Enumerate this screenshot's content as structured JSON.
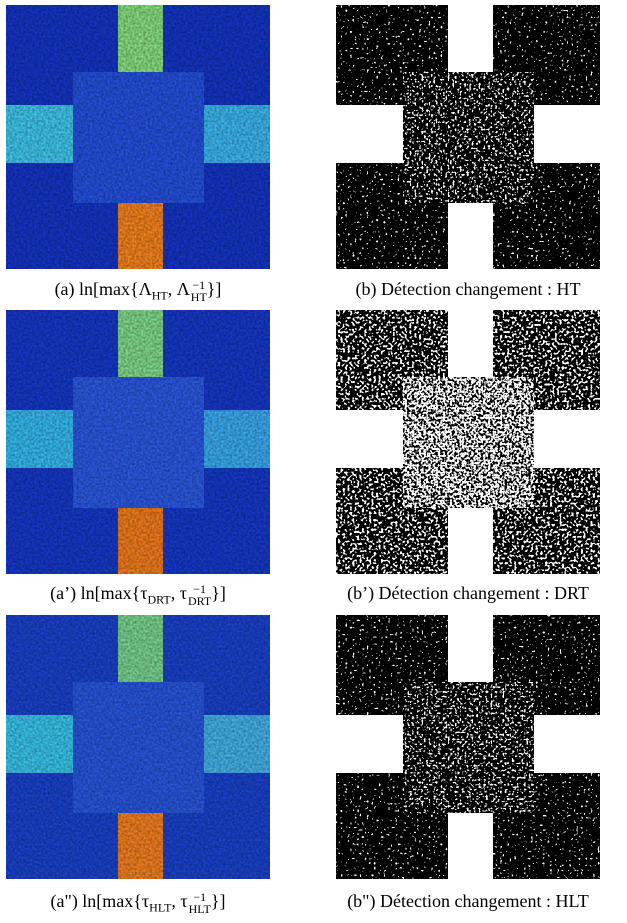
{
  "panels": [
    {
      "caption": [
        {
          "text": "(a) ln[max{Λ"
        },
        {
          "sub": "HT"
        },
        {
          "text": ", Λ"
        },
        {
          "sup": "−1",
          "sub": "HT"
        },
        {
          "text": "}]"
        }
      ]
    },
    {
      "caption": [
        {
          "text": "(b) Détection changement : HT"
        }
      ]
    },
    {
      "caption": [
        {
          "text": "(a’) ln[max{τ"
        },
        {
          "sub": "DRT"
        },
        {
          "text": ", τ"
        },
        {
          "sup": "−1",
          "sub": "DRT"
        },
        {
          "text": "}]"
        }
      ]
    },
    {
      "caption": [
        {
          "text": "(b’) Détection changement : DRT"
        }
      ]
    },
    {
      "caption": [
        {
          "text": "(a\") ln[max{τ"
        },
        {
          "sub": "HLT"
        },
        {
          "text": ", τ"
        },
        {
          "sup": "−1",
          "sub": "HLT"
        },
        {
          "text": "}]"
        }
      ]
    },
    {
      "caption": [
        {
          "text": "(b\") Détection changement : HLT"
        }
      ]
    }
  ]
}
